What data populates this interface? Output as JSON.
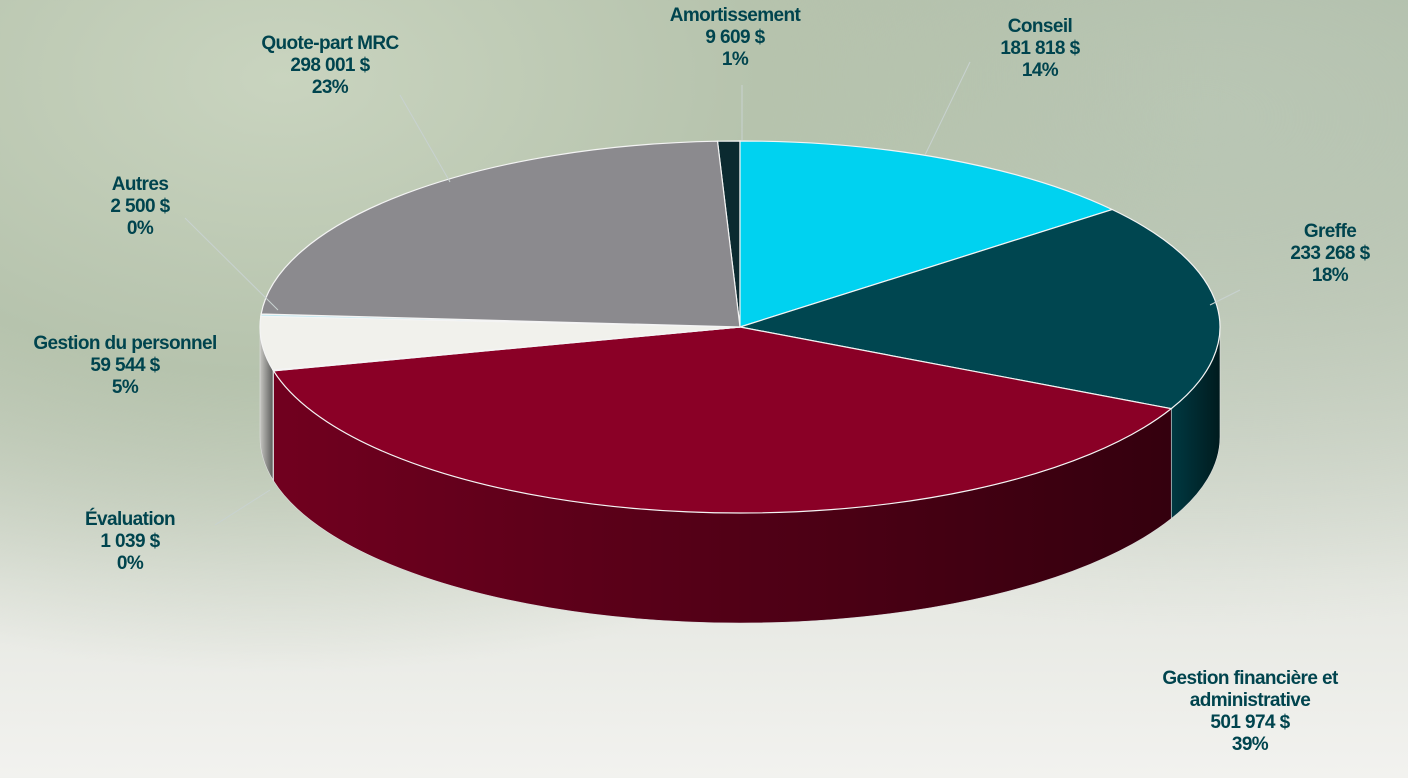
{
  "chart_data": {
    "type": "pie",
    "categories": [
      "Amortissement",
      "Conseil",
      "Greffe",
      "Gestion financière et administrative",
      "Évaluation",
      "Gestion du personnel",
      "Autres",
      "Quote-part MRC"
    ],
    "values": [
      9609,
      181818,
      233268,
      501974,
      1039,
      59544,
      2500,
      298001
    ],
    "value_labels": [
      "9 609  $",
      "181 818  $",
      "233 268  $",
      "501 974  $",
      "1 039  $",
      "59 544  $",
      "2 500  $",
      "298 001  $"
    ],
    "percentage_labels": [
      "1%",
      "14%",
      "18%",
      "39%",
      "0%",
      "5%",
      "0%",
      "23%"
    ],
    "colors": [
      "#0b2a30",
      "#00d2f0",
      "#004650",
      "#8a0026",
      "#7fa0a8",
      "#f1f1ec",
      "#bfe9f2",
      "#8b8a8e"
    ]
  }
}
